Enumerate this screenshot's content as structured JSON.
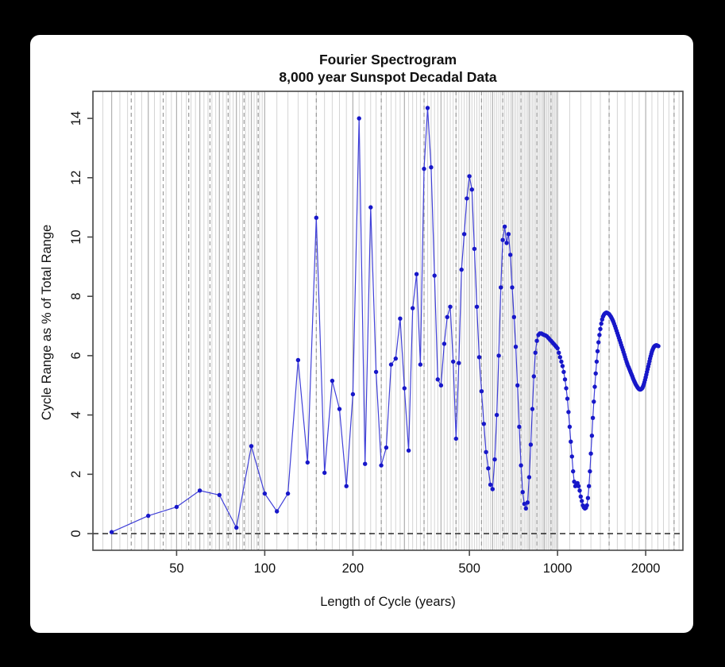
{
  "window": {
    "background_color": "#000000",
    "card_color": "#ffffff"
  },
  "title": {
    "line1": "Fourier Spectrogram",
    "line2": "8,000 year Sunspot Decadal Data"
  },
  "colors": {
    "series_line": "#4040d8",
    "series_marker": "#1717c9",
    "grid_minor": "#d4d4d4",
    "grid_emphasis": "#b2b2b2",
    "grid_dashed": "#9a9a9a",
    "zero_line": "#000000",
    "plot_border": "#4a4a4a"
  },
  "chart_data": {
    "type": "line",
    "title": "Fourier Spectrogram — 8,000 year Sunspot Decadal Data",
    "xlabel": "Length of Cycle (years)",
    "ylabel": "Cycle Range as % of Total Range",
    "x_scale": "log",
    "x_ticks": [
      50,
      100,
      200,
      500,
      1000,
      2000
    ],
    "x_tick_labels": [
      "50",
      "100",
      "200",
      "500",
      "1000",
      "2000"
    ],
    "y_ticks": [
      0,
      2,
      4,
      6,
      8,
      10,
      12,
      14
    ],
    "y_tick_labels": [
      "0",
      "2",
      "4",
      "6",
      "8",
      "10",
      "12",
      "14"
    ],
    "xlim": [
      25.8,
      2690
    ],
    "ylim": [
      -0.56,
      14.91
    ],
    "grid": {
      "solid_ranges": [
        {
          "from": 26,
          "to": 100,
          "step": 2
        },
        {
          "from": 110,
          "to": 1000,
          "step": 10
        },
        {
          "from": 1100,
          "to": 2600,
          "step": 100
        }
      ],
      "emphasis": [
        30,
        40,
        50,
        60,
        70,
        80,
        90,
        100,
        200,
        300,
        400,
        500,
        600,
        700,
        800,
        900,
        1000,
        2000
      ],
      "dashed": [
        35,
        45,
        55,
        65,
        75,
        85,
        95,
        150,
        250,
        350,
        450,
        550,
        650,
        750,
        850,
        950,
        1500,
        2500
      ],
      "zero_line_dashed": true
    },
    "series": [
      {
        "name": "Cycle Range as % of Total Range",
        "points": [
          [
            30,
            0.05
          ],
          [
            40,
            0.6
          ],
          [
            50,
            0.9
          ],
          [
            60,
            1.45
          ],
          [
            70,
            1.3
          ],
          [
            80,
            0.2
          ],
          [
            90,
            2.95
          ],
          [
            100,
            1.35
          ],
          [
            110,
            0.75
          ],
          [
            120,
            1.35
          ],
          [
            130,
            5.85
          ],
          [
            140,
            2.4
          ],
          [
            150,
            10.65
          ],
          [
            160,
            2.05
          ],
          [
            170,
            5.15
          ],
          [
            180,
            4.2
          ],
          [
            190,
            1.6
          ],
          [
            200,
            4.7
          ],
          [
            210,
            14.0
          ],
          [
            220,
            2.35
          ],
          [
            230,
            11.0
          ],
          [
            240,
            5.45
          ],
          [
            250,
            2.3
          ],
          [
            260,
            2.9
          ],
          [
            270,
            5.7
          ],
          [
            280,
            5.9
          ],
          [
            290,
            7.25
          ],
          [
            300,
            4.9
          ],
          [
            310,
            2.8
          ],
          [
            320,
            7.6
          ],
          [
            330,
            8.75
          ],
          [
            340,
            5.7
          ],
          [
            350,
            12.3
          ],
          [
            360,
            14.35
          ],
          [
            370,
            12.35
          ],
          [
            380,
            8.7
          ],
          [
            390,
            5.2
          ],
          [
            400,
            5.0
          ],
          [
            410,
            6.4
          ],
          [
            420,
            7.3
          ],
          [
            430,
            7.65
          ],
          [
            440,
            5.8
          ],
          [
            450,
            3.2
          ],
          [
            460,
            5.75
          ],
          [
            470,
            8.9
          ],
          [
            480,
            10.1
          ],
          [
            490,
            11.3
          ],
          [
            500,
            12.05
          ],
          [
            510,
            11.6
          ],
          [
            520,
            9.6
          ],
          [
            530,
            7.65
          ],
          [
            540,
            5.95
          ],
          [
            550,
            4.8
          ],
          [
            560,
            3.7
          ],
          [
            570,
            2.75
          ],
          [
            580,
            2.2
          ],
          [
            590,
            1.65
          ],
          [
            600,
            1.5
          ],
          [
            610,
            2.5
          ],
          [
            620,
            4.0
          ],
          [
            630,
            6.0
          ],
          [
            640,
            8.3
          ],
          [
            650,
            9.9
          ],
          [
            660,
            10.35
          ],
          [
            670,
            9.8
          ],
          [
            680,
            10.1
          ],
          [
            690,
            9.4
          ],
          [
            700,
            8.3
          ],
          [
            710,
            7.3
          ],
          [
            720,
            6.3
          ],
          [
            730,
            5.0
          ],
          [
            740,
            3.6
          ],
          [
            750,
            2.3
          ],
          [
            760,
            1.4
          ],
          [
            770,
            1.0
          ],
          [
            780,
            0.85
          ],
          [
            790,
            1.05
          ],
          [
            800,
            1.9
          ],
          [
            810,
            3.0
          ],
          [
            820,
            4.2
          ],
          [
            830,
            5.3
          ],
          [
            840,
            6.1
          ],
          [
            850,
            6.5
          ],
          [
            860,
            6.7
          ],
          [
            870,
            6.75
          ],
          [
            880,
            6.75
          ],
          [
            890,
            6.72
          ],
          [
            900,
            6.7
          ],
          [
            910,
            6.68
          ],
          [
            920,
            6.65
          ],
          [
            930,
            6.6
          ],
          [
            940,
            6.55
          ],
          [
            950,
            6.5
          ],
          [
            960,
            6.45
          ],
          [
            970,
            6.4
          ],
          [
            980,
            6.35
          ],
          [
            990,
            6.3
          ],
          [
            1000,
            6.25
          ],
          [
            1010,
            6.1
          ],
          [
            1020,
            5.95
          ],
          [
            1030,
            5.8
          ],
          [
            1040,
            5.65
          ],
          [
            1050,
            5.45
          ],
          [
            1060,
            5.2
          ],
          [
            1070,
            4.9
          ],
          [
            1080,
            4.55
          ],
          [
            1090,
            4.1
          ],
          [
            1100,
            3.6
          ],
          [
            1110,
            3.1
          ],
          [
            1120,
            2.6
          ],
          [
            1130,
            2.1
          ],
          [
            1140,
            1.75
          ],
          [
            1150,
            1.6
          ],
          [
            1160,
            1.65
          ],
          [
            1170,
            1.7
          ],
          [
            1180,
            1.6
          ],
          [
            1190,
            1.45
          ],
          [
            1200,
            1.25
          ],
          [
            1210,
            1.1
          ],
          [
            1220,
            0.95
          ],
          [
            1230,
            0.88
          ],
          [
            1240,
            0.85
          ],
          [
            1250,
            0.87
          ],
          [
            1260,
            0.95
          ],
          [
            1270,
            1.2
          ],
          [
            1280,
            1.6
          ],
          [
            1290,
            2.1
          ],
          [
            1300,
            2.7
          ],
          [
            1310,
            3.3
          ],
          [
            1320,
            3.9
          ],
          [
            1330,
            4.45
          ],
          [
            1340,
            4.95
          ],
          [
            1350,
            5.4
          ],
          [
            1360,
            5.8
          ],
          [
            1370,
            6.15
          ],
          [
            1380,
            6.45
          ],
          [
            1390,
            6.7
          ],
          [
            1400,
            6.9
          ],
          [
            1410,
            7.08
          ],
          [
            1420,
            7.22
          ],
          [
            1430,
            7.32
          ],
          [
            1440,
            7.38
          ],
          [
            1450,
            7.42
          ],
          [
            1460,
            7.44
          ],
          [
            1470,
            7.45
          ],
          [
            1480,
            7.44
          ],
          [
            1490,
            7.42
          ],
          [
            1500,
            7.4
          ],
          [
            1510,
            7.36
          ],
          [
            1520,
            7.32
          ],
          [
            1530,
            7.27
          ],
          [
            1540,
            7.21
          ],
          [
            1550,
            7.15
          ],
          [
            1560,
            7.08
          ],
          [
            1570,
            7.0
          ],
          [
            1580,
            6.92
          ],
          [
            1590,
            6.84
          ],
          [
            1600,
            6.76
          ],
          [
            1610,
            6.68
          ],
          [
            1620,
            6.6
          ],
          [
            1630,
            6.52
          ],
          [
            1640,
            6.44
          ],
          [
            1650,
            6.36
          ],
          [
            1660,
            6.28
          ],
          [
            1670,
            6.2
          ],
          [
            1680,
            6.12
          ],
          [
            1690,
            6.04
          ],
          [
            1700,
            5.96
          ],
          [
            1710,
            5.88
          ],
          [
            1720,
            5.8
          ],
          [
            1730,
            5.73
          ],
          [
            1740,
            5.66
          ],
          [
            1750,
            5.6
          ],
          [
            1760,
            5.54
          ],
          [
            1770,
            5.48
          ],
          [
            1780,
            5.42
          ],
          [
            1790,
            5.36
          ],
          [
            1800,
            5.3
          ],
          [
            1810,
            5.24
          ],
          [
            1820,
            5.18
          ],
          [
            1830,
            5.13
          ],
          [
            1840,
            5.08
          ],
          [
            1850,
            5.03
          ],
          [
            1860,
            4.99
          ],
          [
            1870,
            4.95
          ],
          [
            1880,
            4.92
          ],
          [
            1890,
            4.89
          ],
          [
            1900,
            4.87
          ],
          [
            1910,
            4.86
          ],
          [
            1920,
            4.86
          ],
          [
            1930,
            4.87
          ],
          [
            1940,
            4.89
          ],
          [
            1950,
            4.92
          ],
          [
            1960,
            4.97
          ],
          [
            1970,
            5.03
          ],
          [
            1980,
            5.1
          ],
          [
            1990,
            5.18
          ],
          [
            2000,
            5.27
          ],
          [
            2010,
            5.36
          ],
          [
            2020,
            5.45
          ],
          [
            2030,
            5.54
          ],
          [
            2040,
            5.63
          ],
          [
            2050,
            5.72
          ],
          [
            2060,
            5.81
          ],
          [
            2070,
            5.9
          ],
          [
            2080,
            5.98
          ],
          [
            2090,
            6.06
          ],
          [
            2100,
            6.13
          ],
          [
            2110,
            6.19
          ],
          [
            2120,
            6.24
          ],
          [
            2130,
            6.28
          ],
          [
            2140,
            6.31
          ],
          [
            2150,
            6.33
          ],
          [
            2160,
            6.34
          ],
          [
            2170,
            6.35
          ],
          [
            2180,
            6.35
          ],
          [
            2190,
            6.34
          ],
          [
            2200,
            6.33
          ],
          [
            2210,
            6.32
          ]
        ]
      }
    ],
    "legend": "none"
  }
}
